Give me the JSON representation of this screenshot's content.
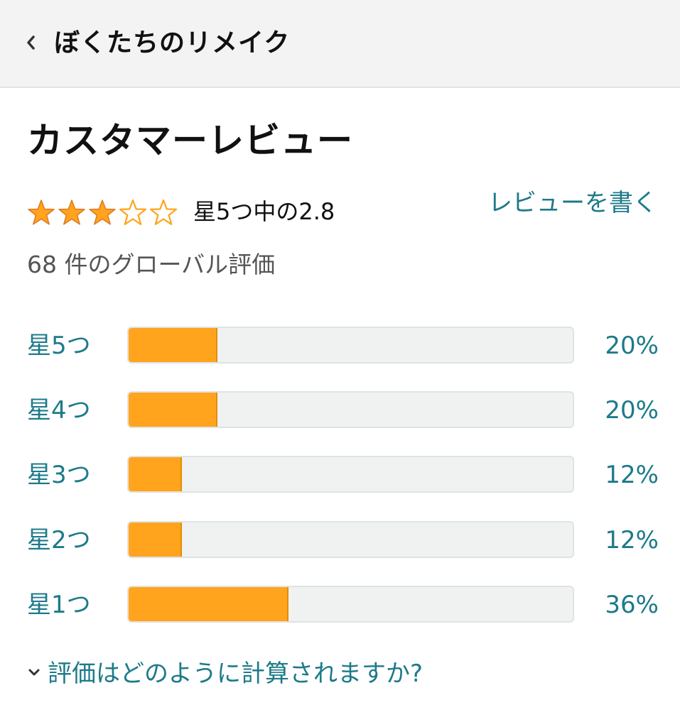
{
  "header": {
    "back_icon": "chevron-left-icon",
    "title": "ぼくたちのリメイク"
  },
  "reviews": {
    "section_title": "カスタマーレビュー",
    "rating_value": 2.8,
    "rating_text": "星5つ中の2.8",
    "stars_filled": 3,
    "stars_total": 5,
    "write_review_label": "レビューを書く",
    "global_count_text": "68 件のグローバル評価",
    "histogram": [
      {
        "label": "星5つ",
        "percent": 20,
        "percent_text": "20%"
      },
      {
        "label": "星4つ",
        "percent": 20,
        "percent_text": "20%"
      },
      {
        "label": "星3つ",
        "percent": 12,
        "percent_text": "12%"
      },
      {
        "label": "星2つ",
        "percent": 12,
        "percent_text": "12%"
      },
      {
        "label": "星1つ",
        "percent": 36,
        "percent_text": "36%"
      }
    ],
    "how_calculated_icon": "chevron-down-icon",
    "how_calculated_label": "評価はどのように計算されますか?"
  },
  "colors": {
    "link": "#1d7a8a",
    "star_fill": "#ffa41c",
    "bar_fill": "#ffa41c",
    "bar_track": "#f0f2f2",
    "header_bg": "#f3f3f3"
  }
}
